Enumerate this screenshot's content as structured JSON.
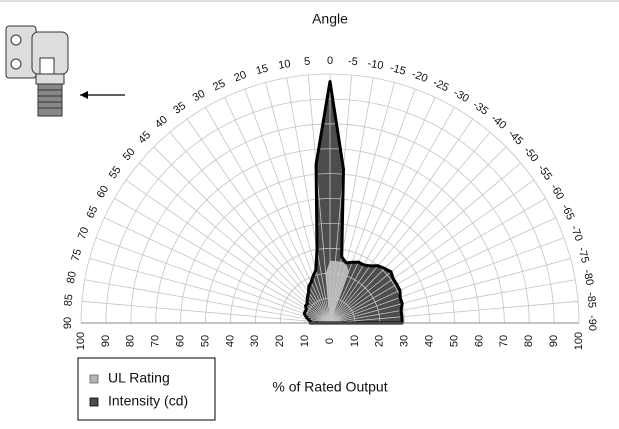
{
  "chart_data": {
    "type": "polar",
    "title": "Angle",
    "axis_label": "% of Rated Output",
    "angles": [
      90,
      85,
      80,
      75,
      70,
      65,
      60,
      55,
      50,
      45,
      40,
      35,
      30,
      25,
      20,
      15,
      10,
      5,
      0,
      -5,
      -10,
      -15,
      -20,
      -25,
      -30,
      -35,
      -40,
      -45,
      -50,
      -55,
      -60,
      -65,
      -70,
      -75,
      -80,
      -85,
      -90
    ],
    "rlim": [
      0,
      100
    ],
    "rticks": [
      0,
      10,
      20,
      30,
      40,
      50,
      60,
      70,
      80,
      90,
      100
    ],
    "grid": true,
    "series": [
      {
        "name": "UL Rating",
        "color": "#b4b4b4",
        "values": [
          0,
          0,
          0,
          0,
          0,
          0,
          0,
          0,
          0,
          0,
          0,
          0,
          0,
          0,
          0,
          0,
          0,
          20,
          25,
          25,
          25,
          25,
          22,
          0,
          0,
          0,
          0,
          0,
          0,
          0,
          0,
          0,
          0,
          0,
          0,
          0,
          0
        ]
      },
      {
        "name": "Intensity (cd)",
        "color": "#4d4d4d",
        "outline": "#000000",
        "values": [
          8,
          8,
          9,
          10,
          11,
          11,
          11,
          12,
          12,
          13,
          14,
          15,
          17,
          18,
          20,
          22,
          30,
          64,
          97,
          62,
          27,
          25,
          26,
          27,
          27,
          28,
          30,
          31,
          32,
          31,
          31,
          31,
          30,
          30,
          29,
          29,
          29
        ]
      }
    ]
  }
}
